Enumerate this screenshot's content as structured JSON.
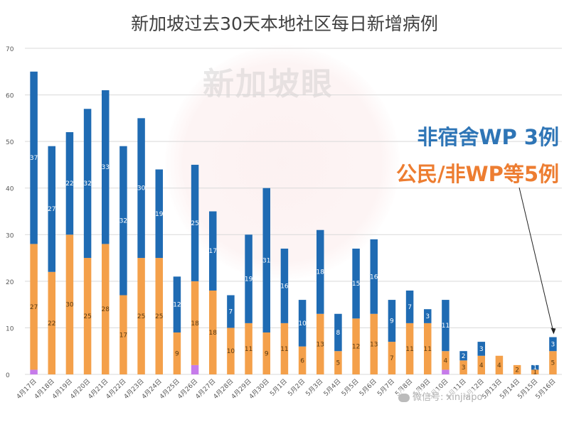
{
  "chart_data": {
    "type": "bar",
    "stacked": true,
    "title": "新加坡过去30天本地社区每日新增病例",
    "ylim": [
      0,
      70
    ],
    "yticks": [
      0,
      10,
      20,
      30,
      40,
      50,
      60,
      70
    ],
    "grid": true,
    "legend": "none",
    "categories": [
      "4月17日",
      "4月18日",
      "4月19日",
      "4月20日",
      "4月21日",
      "4月22日",
      "4月23日",
      "4月24日",
      "4月25日",
      "4月26日",
      "4月27日",
      "4月28日",
      "4月29日",
      "4月30日",
      "5月1日",
      "5月2日",
      "5月3日",
      "5月4日",
      "5月5日",
      "5月6日",
      "5月7日",
      "5月8日",
      "5月9日",
      "5月10日",
      "5月11日",
      "5月12日",
      "5月13日",
      "5月14日",
      "5月15日",
      "5月16日"
    ],
    "series": [
      {
        "values": [
          1,
          0,
          0,
          0,
          0,
          0,
          0,
          0,
          0,
          2,
          0,
          0,
          0,
          0,
          0,
          0,
          0,
          0,
          0,
          0,
          0,
          0,
          0,
          1,
          0,
          0,
          0,
          0,
          0,
          0
        ],
        "color": "#C67BEA"
      },
      {
        "values": [
          27,
          22,
          30,
          25,
          28,
          17,
          25,
          25,
          9,
          18,
          18,
          10,
          11,
          9,
          11,
          6,
          13,
          5,
          12,
          13,
          7,
          11,
          11,
          4,
          3,
          4,
          4,
          2,
          1,
          5
        ],
        "color": "#F4A04A"
      },
      {
        "values": [
          37,
          27,
          22,
          32,
          33,
          32,
          30,
          19,
          12,
          25,
          17,
          7,
          19,
          31,
          16,
          10,
          18,
          8,
          15,
          16,
          9,
          7,
          3,
          11,
          2,
          3,
          0,
          0,
          1,
          3
        ],
        "color": "#1F6BB3"
      }
    ],
    "bar_labels_shown": [
      [
        null,
        null,
        null,
        null,
        null,
        null,
        null,
        null,
        null,
        null,
        null,
        null,
        null,
        null,
        null,
        null,
        null,
        null,
        null,
        null,
        null,
        null,
        null,
        null,
        null,
        null,
        null,
        null,
        null,
        null
      ],
      [
        27,
        22,
        30,
        25,
        28,
        17,
        25,
        25,
        9,
        18,
        18,
        10,
        11,
        9,
        11,
        6,
        13,
        5,
        12,
        13,
        7,
        11,
        11,
        4,
        3,
        4,
        4,
        2,
        1,
        5
      ],
      [
        37,
        27,
        22,
        32,
        33,
        32,
        30,
        19,
        12,
        25,
        17,
        7,
        19,
        31,
        16,
        10,
        18,
        8,
        15,
        16,
        9,
        7,
        3,
        11,
        2,
        3,
        null,
        null,
        1,
        3
      ]
    ]
  },
  "annotations": {
    "wp": "非宿舍WP 3例",
    "citizen": "公民/非WP等5例"
  },
  "watermark": "新加坡眼",
  "wechat": "微信号: xinjiapo"
}
